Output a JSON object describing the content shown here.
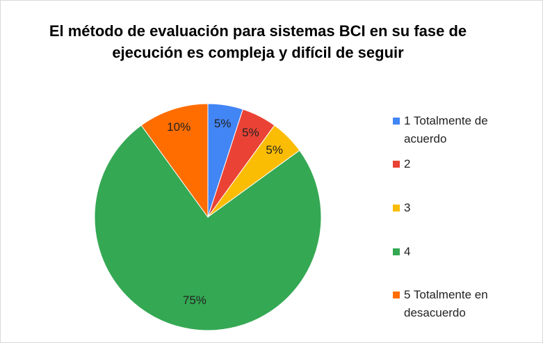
{
  "chart_data": {
    "type": "pie",
    "title": "El método de evaluación para sistemas BCI en su fase de ejecución es compleja y difícil de seguir",
    "categories": [
      "1 Totalmente de acuerdo",
      "2",
      "3",
      "4",
      "5 Totalmente en desacuerdo"
    ],
    "values": [
      5,
      5,
      5,
      75,
      10
    ],
    "value_labels": [
      "5%",
      "5%",
      "5%",
      "75%",
      "10%"
    ],
    "colors": [
      "#4285f4",
      "#ea4335",
      "#fbbc04",
      "#34a853",
      "#ff6d01"
    ],
    "legend": "right"
  }
}
